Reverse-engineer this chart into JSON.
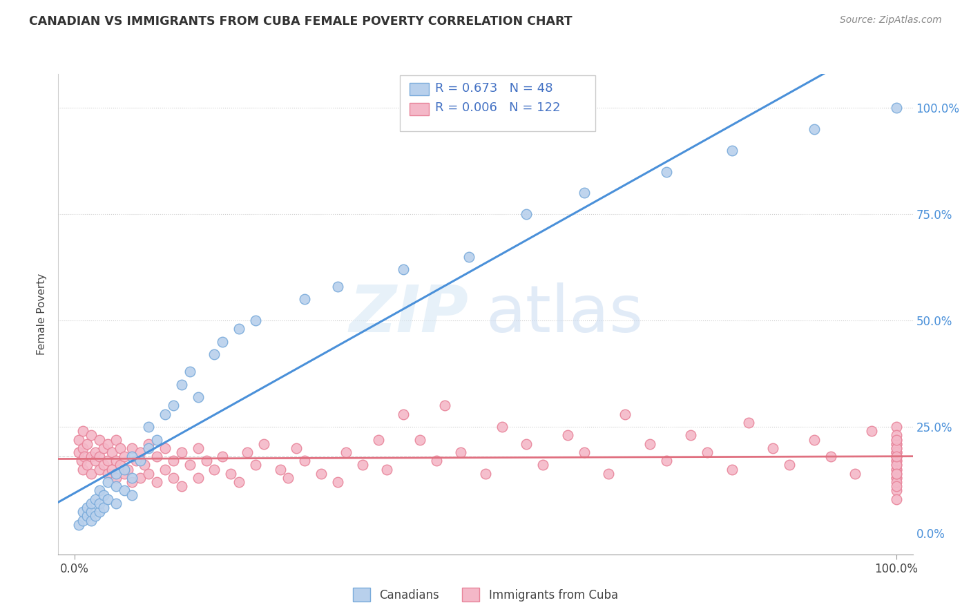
{
  "title": "CANADIAN VS IMMIGRANTS FROM CUBA FEMALE POVERTY CORRELATION CHART",
  "source": "Source: ZipAtlas.com",
  "ylabel": "Female Poverty",
  "yticks": [
    "0.0%",
    "25.0%",
    "50.0%",
    "75.0%",
    "100.0%"
  ],
  "ytick_vals": [
    0.0,
    0.25,
    0.5,
    0.75,
    1.0
  ],
  "r_canadian": 0.673,
  "n_canadian": 48,
  "r_cuba": 0.006,
  "n_cuba": 122,
  "scatter_face_blue": "#b8d0ec",
  "scatter_edge_blue": "#7aabdb",
  "scatter_face_pink": "#f4b8c8",
  "scatter_edge_pink": "#e8849a",
  "line_blue": "#4a90d9",
  "line_pink": "#e07080",
  "watermark_zip_color": "#c5d8f0",
  "watermark_atlas_color": "#b0c8e8",
  "canadians_x": [
    0.005,
    0.01,
    0.01,
    0.015,
    0.015,
    0.02,
    0.02,
    0.02,
    0.025,
    0.025,
    0.03,
    0.03,
    0.03,
    0.035,
    0.035,
    0.04,
    0.04,
    0.05,
    0.05,
    0.05,
    0.06,
    0.06,
    0.07,
    0.07,
    0.07,
    0.08,
    0.09,
    0.09,
    0.1,
    0.11,
    0.12,
    0.13,
    0.14,
    0.15,
    0.17,
    0.18,
    0.2,
    0.22,
    0.28,
    0.32,
    0.4,
    0.48,
    0.55,
    0.62,
    0.72,
    0.8,
    0.9,
    1.0
  ],
  "canadians_y": [
    0.02,
    0.03,
    0.05,
    0.04,
    0.06,
    0.03,
    0.05,
    0.07,
    0.04,
    0.08,
    0.05,
    0.07,
    0.1,
    0.06,
    0.09,
    0.08,
    0.12,
    0.07,
    0.11,
    0.14,
    0.1,
    0.15,
    0.09,
    0.13,
    0.18,
    0.17,
    0.2,
    0.25,
    0.22,
    0.28,
    0.3,
    0.35,
    0.38,
    0.32,
    0.42,
    0.45,
    0.48,
    0.5,
    0.55,
    0.58,
    0.62,
    0.65,
    0.75,
    0.8,
    0.85,
    0.9,
    0.95,
    1.0
  ],
  "cuba_x": [
    0.005,
    0.005,
    0.008,
    0.01,
    0.01,
    0.01,
    0.012,
    0.015,
    0.015,
    0.02,
    0.02,
    0.02,
    0.025,
    0.025,
    0.03,
    0.03,
    0.03,
    0.035,
    0.035,
    0.04,
    0.04,
    0.04,
    0.045,
    0.045,
    0.05,
    0.05,
    0.05,
    0.055,
    0.055,
    0.06,
    0.06,
    0.065,
    0.07,
    0.07,
    0.075,
    0.08,
    0.08,
    0.085,
    0.09,
    0.09,
    0.1,
    0.1,
    0.11,
    0.11,
    0.12,
    0.12,
    0.13,
    0.13,
    0.14,
    0.15,
    0.15,
    0.16,
    0.17,
    0.18,
    0.19,
    0.2,
    0.21,
    0.22,
    0.23,
    0.25,
    0.26,
    0.27,
    0.28,
    0.3,
    0.32,
    0.33,
    0.35,
    0.37,
    0.38,
    0.4,
    0.42,
    0.44,
    0.45,
    0.47,
    0.5,
    0.52,
    0.55,
    0.57,
    0.6,
    0.62,
    0.65,
    0.67,
    0.7,
    0.72,
    0.75,
    0.77,
    0.8,
    0.82,
    0.85,
    0.87,
    0.9,
    0.92,
    0.95,
    0.97,
    1.0,
    1.0,
    1.0,
    1.0,
    1.0,
    1.0,
    1.0,
    1.0,
    1.0,
    1.0,
    1.0,
    1.0,
    1.0,
    1.0,
    1.0,
    1.0,
    1.0,
    1.0,
    1.0,
    1.0,
    1.0,
    1.0,
    1.0,
    1.0,
    1.0,
    1.0,
    1.0,
    1.0
  ],
  "cuba_y": [
    0.19,
    0.22,
    0.17,
    0.15,
    0.2,
    0.24,
    0.18,
    0.16,
    0.21,
    0.14,
    0.18,
    0.23,
    0.17,
    0.19,
    0.15,
    0.18,
    0.22,
    0.16,
    0.2,
    0.14,
    0.17,
    0.21,
    0.15,
    0.19,
    0.13,
    0.17,
    0.22,
    0.16,
    0.2,
    0.14,
    0.18,
    0.15,
    0.12,
    0.2,
    0.17,
    0.13,
    0.19,
    0.16,
    0.14,
    0.21,
    0.12,
    0.18,
    0.15,
    0.2,
    0.13,
    0.17,
    0.11,
    0.19,
    0.16,
    0.13,
    0.2,
    0.17,
    0.15,
    0.18,
    0.14,
    0.12,
    0.19,
    0.16,
    0.21,
    0.15,
    0.13,
    0.2,
    0.17,
    0.14,
    0.12,
    0.19,
    0.16,
    0.22,
    0.15,
    0.28,
    0.22,
    0.17,
    0.3,
    0.19,
    0.14,
    0.25,
    0.21,
    0.16,
    0.23,
    0.19,
    0.14,
    0.28,
    0.21,
    0.17,
    0.23,
    0.19,
    0.15,
    0.26,
    0.2,
    0.16,
    0.22,
    0.18,
    0.14,
    0.24,
    0.19,
    0.15,
    0.21,
    0.17,
    0.13,
    0.19,
    0.15,
    0.22,
    0.18,
    0.1,
    0.2,
    0.16,
    0.13,
    0.25,
    0.18,
    0.12,
    0.21,
    0.17,
    0.14,
    0.23,
    0.19,
    0.11,
    0.16,
    0.2,
    0.18,
    0.14,
    0.22,
    0.08
  ]
}
